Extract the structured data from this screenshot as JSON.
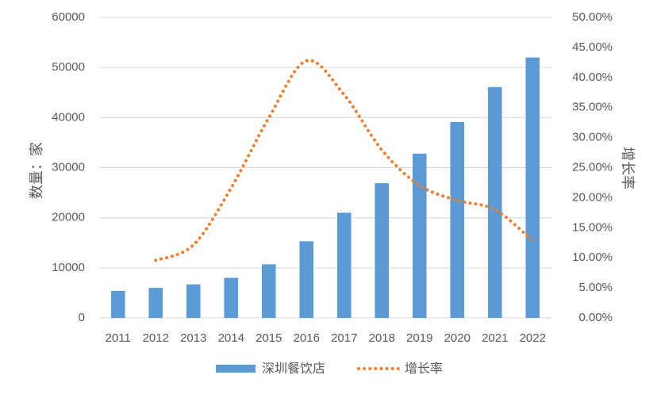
{
  "chart_data": {
    "type": "bar",
    "categories": [
      "2011",
      "2012",
      "2013",
      "2014",
      "2015",
      "2016",
      "2017",
      "2018",
      "2019",
      "2020",
      "2021",
      "2022"
    ],
    "series": [
      {
        "name": "深圳餐饮店",
        "type": "bar",
        "axis": "left",
        "color": "#5b9bd5",
        "values": [
          5400,
          6000,
          6700,
          8000,
          10700,
          15300,
          21000,
          26900,
          32800,
          39100,
          46100,
          52000
        ]
      },
      {
        "name": "增长率",
        "type": "line",
        "style": "dotted",
        "axis": "right",
        "color": "#ed7d31",
        "values": [
          null,
          0.0957,
          0.1214,
          0.2162,
          0.3329,
          0.4278,
          0.3713,
          0.2794,
          0.2206,
          0.1956,
          0.1801,
          0.1286
        ]
      }
    ],
    "y_left": {
      "label": "数量：家",
      "range": [
        0,
        60000
      ],
      "ticks": [
        "0",
        "10000",
        "20000",
        "30000",
        "40000",
        "50000",
        "60000"
      ],
      "tick_values": [
        0,
        10000,
        20000,
        30000,
        40000,
        50000,
        60000
      ]
    },
    "y_right": {
      "label": "增长率",
      "range": [
        0,
        0.5
      ],
      "ticks": [
        "0.00%",
        "5.00%",
        "10.00%",
        "15.00%",
        "20.00%",
        "25.00%",
        "30.00%",
        "35.00%",
        "40.00%",
        "45.00%",
        "50.00%"
      ],
      "tick_values": [
        0,
        0.05,
        0.1,
        0.15,
        0.2,
        0.25,
        0.3,
        0.35,
        0.4,
        0.45,
        0.5
      ]
    },
    "grid": true,
    "legend_position": "bottom"
  }
}
